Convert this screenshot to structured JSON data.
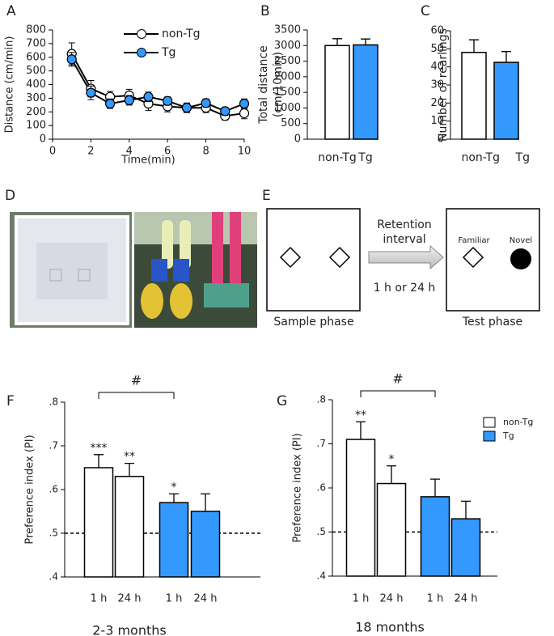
{
  "photo_panel": {
    "label": "D"
  },
  "diagram": {
    "label": "E",
    "arrow_text": [
      "Retention",
      "interval"
    ],
    "interval_text": "1 h or 24 h",
    "sample_caption": "Sample phase",
    "test_caption": "Test phase",
    "familiar": "Familiar",
    "novel": "Novel"
  },
  "chart_data": [
    {
      "type": "line",
      "panel": "A",
      "xlabel": "Time(min)",
      "ylabel": "Distance (cm/min)",
      "x": [
        1,
        2,
        3,
        4,
        5,
        6,
        7,
        8,
        9,
        10
      ],
      "xlim": [
        0,
        10
      ],
      "xticks": [
        0,
        2,
        4,
        6,
        8,
        10
      ],
      "ylim": [
        0,
        800
      ],
      "yticks": [
        0,
        100,
        200,
        300,
        400,
        500,
        600,
        700,
        800
      ],
      "series": [
        {
          "name": "non-Tg",
          "color": "#ffffff",
          "values": [
            625,
            370,
            310,
            320,
            260,
            240,
            230,
            230,
            170,
            190
          ],
          "errors": [
            80,
            60,
            40,
            45,
            50,
            40,
            35,
            35,
            30,
            40
          ]
        },
        {
          "name": "Tg",
          "color": "#3399ff",
          "values": [
            585,
            340,
            260,
            285,
            310,
            280,
            230,
            265,
            205,
            260
          ],
          "errors": [
            50,
            50,
            35,
            35,
            35,
            30,
            30,
            30,
            30,
            35
          ]
        }
      ]
    },
    {
      "type": "bar",
      "panel": "B",
      "ylabel": [
        "Total distance",
        "(cm/10min)"
      ],
      "categories": [
        "non-Tg",
        "Tg"
      ],
      "values": [
        3000,
        3020
      ],
      "errors": [
        220,
        190
      ],
      "colors": [
        "#ffffff",
        "#3399ff"
      ],
      "ylim": [
        0,
        3500
      ],
      "yticks": [
        0,
        500,
        1000,
        1500,
        2000,
        2500,
        3000,
        3500
      ]
    },
    {
      "type": "bar",
      "panel": "C",
      "ylabel": [
        "Number of rearlings"
      ],
      "categories": [
        "non-Tg",
        "Tg"
      ],
      "values": [
        48,
        42.5
      ],
      "errors": [
        7,
        6
      ],
      "colors": [
        "#ffffff",
        "#3399ff"
      ],
      "ylim": [
        0,
        60
      ],
      "yticks": [
        0,
        10,
        20,
        30,
        40,
        50,
        60
      ]
    },
    {
      "type": "bar",
      "panel": "F",
      "ylabel": [
        "Preference index (PI)"
      ],
      "xlabel": "2-3 months",
      "categories": [
        "1 h",
        "24 h",
        "1 h",
        "24 h"
      ],
      "values": [
        0.65,
        0.63,
        0.57,
        0.55
      ],
      "errors": [
        0.03,
        0.03,
        0.02,
        0.04
      ],
      "colors": [
        "#ffffff",
        "#ffffff",
        "#3399ff",
        "#3399ff"
      ],
      "sig_labels": [
        "***",
        "**",
        "*",
        null
      ],
      "bracket_label": "#",
      "reference_line": 0.5,
      "ylim": [
        0.4,
        0.8
      ],
      "yticks": [
        {
          "value": 0.4,
          "label": ".4"
        },
        {
          "value": 0.5,
          "label": ".5"
        },
        {
          "value": 0.6,
          "label": ".6"
        },
        {
          "value": 0.7,
          "label": ".7"
        },
        {
          "value": 0.8,
          "label": ".8"
        }
      ]
    },
    {
      "type": "bar",
      "panel": "G",
      "ylabel": [
        "Preference index (PI)"
      ],
      "xlabel": "18 months",
      "categories": [
        "1 h",
        "24 h",
        "1 h",
        "24 h"
      ],
      "values": [
        0.71,
        0.61,
        0.58,
        0.53
      ],
      "errors": [
        0.04,
        0.04,
        0.04,
        0.04
      ],
      "colors": [
        "#ffffff",
        "#ffffff",
        "#3399ff",
        "#3399ff"
      ],
      "sig_labels": [
        "**",
        "*",
        null,
        null
      ],
      "bracket_label": "#",
      "reference_line": 0.5,
      "ylim": [
        0.4,
        0.8
      ],
      "yticks": [
        {
          "value": 0.4,
          "label": ".4"
        },
        {
          "value": 0.5,
          "label": ".5"
        },
        {
          "value": 0.6,
          "label": ".6"
        },
        {
          "value": 0.7,
          "label": ".7"
        },
        {
          "value": 0.8,
          "label": ".8"
        }
      ],
      "legend": [
        {
          "name": "non-Tg",
          "color": "#ffffff"
        },
        {
          "name": "Tg",
          "color": "#3399ff"
        }
      ]
    }
  ]
}
